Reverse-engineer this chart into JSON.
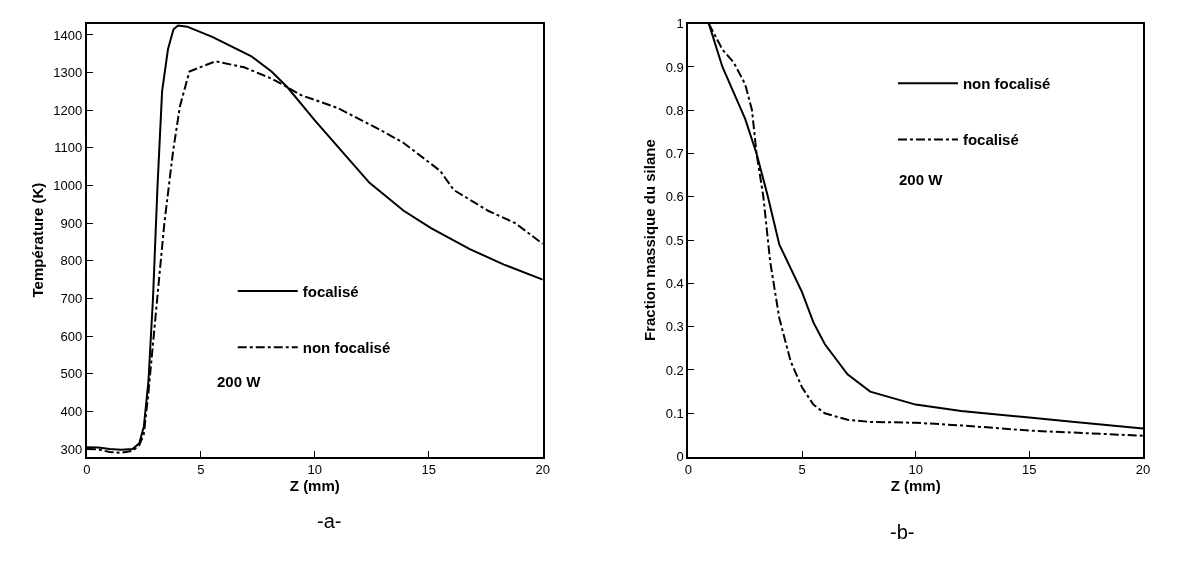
{
  "chart_data": [
    {
      "type": "line",
      "xlabel": "Z (mm)",
      "ylabel": "Température (K)",
      "xlim": [
        0,
        20
      ],
      "xticks": [
        0,
        5,
        10,
        15,
        20
      ],
      "ylim": [
        280,
        1430
      ],
      "yticks": [
        300,
        400,
        500,
        600,
        700,
        800,
        900,
        1000,
        1100,
        1200,
        1300,
        1400
      ],
      "legend": "bottom",
      "annotations": [
        "200 W",
        "-a-"
      ],
      "series": [
        {
          "name": "focalisé",
          "color": "#000000",
          "line_style": "solid",
          "x": [
            0,
            0.5,
            1,
            1.5,
            2,
            2.3,
            2.5,
            2.7,
            2.9,
            3.1,
            3.3,
            3.56,
            3.8,
            4.0,
            4.4,
            5.5,
            7.2,
            8.1,
            8.8,
            10.0,
            11.2,
            12.4,
            13.9,
            15.1,
            16.8,
            18.3,
            20
          ],
          "values": [
            305,
            304,
            300,
            298,
            300,
            315,
            360,
            480,
            700,
            1000,
            1250,
            1363,
            1415,
            1425,
            1422,
            1395,
            1344,
            1303,
            1261,
            1173,
            1090,
            1007,
            933,
            887,
            831,
            790,
            750
          ]
        },
        {
          "name": "non focalisé",
          "color": "#000000",
          "line_style": "dashdot",
          "x": [
            0,
            0.5,
            1,
            1.5,
            2,
            2.3,
            2.5,
            2.7,
            3.04,
            3.4,
            3.78,
            4.08,
            4.5,
            5.64,
            6.9,
            8.1,
            8.8,
            9.4,
            11.0,
            12.8,
            13.9,
            15.5,
            16.1,
            17.6,
            18.8,
            20
          ],
          "values": [
            300,
            299,
            292,
            290,
            295,
            310,
            340,
            450,
            670,
            900,
            1090,
            1210,
            1303,
            1330,
            1314,
            1284,
            1261,
            1240,
            1206,
            1150,
            1113,
            1039,
            988,
            933,
            900,
            845
          ]
        }
      ]
    },
    {
      "type": "line",
      "xlabel": "Z (mm)",
      "ylabel": "Fraction massique du silane",
      "xlim": [
        0,
        20
      ],
      "xticks": [
        0,
        5,
        10,
        15,
        20
      ],
      "ylim": [
        0,
        1
      ],
      "yticks": [
        0,
        0.1,
        0.2,
        0.3,
        0.4,
        0.5,
        0.6,
        0.7,
        0.8,
        0.9,
        1
      ],
      "legend": "top right",
      "annotations": [
        "200 W",
        "-b-"
      ],
      "series": [
        {
          "name": "non focalisé",
          "color": "#000000",
          "line_style": "solid",
          "x": [
            0.9,
            1.5,
            2,
            2.5,
            3,
            3.5,
            4,
            5,
            5.5,
            6,
            7,
            8,
            10,
            12,
            15,
            17,
            20
          ],
          "values": [
            1.0,
            0.9,
            0.84,
            0.78,
            0.7,
            0.6,
            0.49,
            0.38,
            0.31,
            0.26,
            0.19,
            0.15,
            0.12,
            0.105,
            0.09,
            0.08,
            0.065
          ]
        },
        {
          "name": "focalisé",
          "color": "#000000",
          "line_style": "dashdot",
          "x": [
            0.9,
            1.5,
            2,
            2.5,
            2.8,
            3,
            3.3,
            3.6,
            4,
            4.5,
            5,
            5.5,
            6,
            7,
            8,
            10,
            12,
            15,
            20
          ],
          "values": [
            1.0,
            0.94,
            0.91,
            0.86,
            0.8,
            0.7,
            0.6,
            0.45,
            0.32,
            0.22,
            0.16,
            0.12,
            0.1,
            0.085,
            0.08,
            0.078,
            0.072,
            0.06,
            0.048
          ]
        }
      ]
    }
  ]
}
